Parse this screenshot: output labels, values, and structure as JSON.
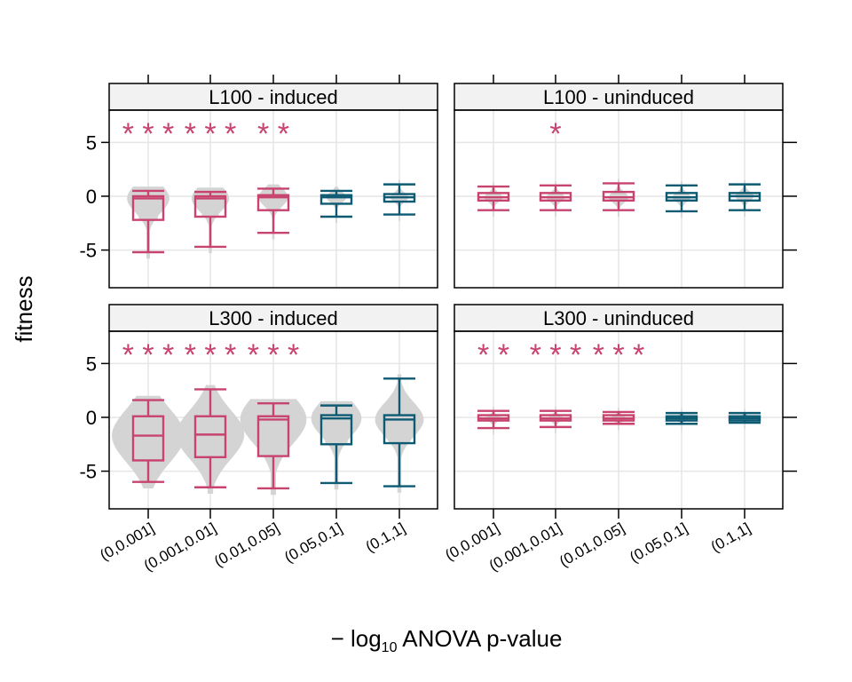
{
  "chart_data": {
    "type": "box",
    "xlabel": {
      "prefix": "− log",
      "subscript": "10",
      "suffix": " ANOVA p-value"
    },
    "ylabel": "fitness",
    "ylim": [
      -8.5,
      8
    ],
    "yticks": [
      -5,
      0,
      5
    ],
    "ytick_labels": [
      "-5",
      "0",
      "5"
    ],
    "grid": true,
    "categories": [
      "(0,0.001]",
      "(0.001,0.01]",
      "(0.01,0.05]",
      "(0.05,0.1]",
      "(0.1,1]"
    ],
    "colors": {
      "significant": "#c8436e",
      "nonsignificant": "#0d5a73",
      "violin": "#d4d4d4",
      "grid": "#e6e6e6",
      "strip": "#f2f2f2"
    },
    "panels": [
      {
        "title": "L100 - induced",
        "boxes": [
          {
            "lower_whisker": -5.2,
            "q1": -2.2,
            "median": -0.2,
            "q3": 0.0,
            "upper_whisker": 0.5,
            "significance": "***"
          },
          {
            "lower_whisker": -4.7,
            "q1": -1.9,
            "median": -0.2,
            "q3": 0.0,
            "upper_whisker": 0.4,
            "significance": "***"
          },
          {
            "lower_whisker": -3.4,
            "q1": -1.3,
            "median": -0.1,
            "q3": 0.1,
            "upper_whisker": 0.7,
            "significance": "**"
          },
          {
            "lower_whisker": -1.9,
            "q1": -0.7,
            "median": -0.1,
            "q3": 0.1,
            "upper_whisker": 0.5,
            "significance": ""
          },
          {
            "lower_whisker": -1.7,
            "q1": -0.5,
            "median": -0.1,
            "q3": 0.2,
            "upper_whisker": 1.1,
            "significance": ""
          }
        ]
      },
      {
        "title": "L100 - uninduced",
        "boxes": [
          {
            "lower_whisker": -1.3,
            "q1": -0.4,
            "median": -0.1,
            "q3": 0.3,
            "upper_whisker": 0.9,
            "significance": ""
          },
          {
            "lower_whisker": -1.3,
            "q1": -0.4,
            "median": -0.1,
            "q3": 0.3,
            "upper_whisker": 1.0,
            "significance": "*"
          },
          {
            "lower_whisker": -1.3,
            "q1": -0.4,
            "median": -0.1,
            "q3": 0.4,
            "upper_whisker": 1.2,
            "significance": ""
          },
          {
            "lower_whisker": -1.4,
            "q1": -0.4,
            "median": -0.1,
            "q3": 0.3,
            "upper_whisker": 1.0,
            "significance": ""
          },
          {
            "lower_whisker": -1.3,
            "q1": -0.4,
            "median": 0.0,
            "q3": 0.3,
            "upper_whisker": 1.1,
            "significance": ""
          }
        ]
      },
      {
        "title": "L300 - induced",
        "boxes": [
          {
            "lower_whisker": -6.0,
            "q1": -4.0,
            "median": -1.7,
            "q3": 0.1,
            "upper_whisker": 1.6,
            "significance": "***"
          },
          {
            "lower_whisker": -6.5,
            "q1": -3.7,
            "median": -1.6,
            "q3": 0.1,
            "upper_whisker": 2.6,
            "significance": "***"
          },
          {
            "lower_whisker": -6.6,
            "q1": -3.6,
            "median": -0.2,
            "q3": 0.1,
            "upper_whisker": 1.3,
            "significance": "***"
          },
          {
            "lower_whisker": -6.1,
            "q1": -2.5,
            "median": -0.1,
            "q3": 0.2,
            "upper_whisker": 1.1,
            "significance": ""
          },
          {
            "lower_whisker": -6.4,
            "q1": -2.4,
            "median": -0.2,
            "q3": 0.2,
            "upper_whisker": 3.6,
            "significance": ""
          }
        ]
      },
      {
        "title": "L300 - uninduced",
        "boxes": [
          {
            "lower_whisker": -1.0,
            "q1": -0.3,
            "median": -0.1,
            "q3": 0.2,
            "upper_whisker": 0.6,
            "significance": "**"
          },
          {
            "lower_whisker": -0.9,
            "q1": -0.3,
            "median": -0.1,
            "q3": 0.2,
            "upper_whisker": 0.6,
            "significance": "***"
          },
          {
            "lower_whisker": -0.6,
            "q1": -0.3,
            "median": -0.1,
            "q3": 0.2,
            "upper_whisker": 0.5,
            "significance": "***"
          },
          {
            "lower_whisker": -0.6,
            "q1": -0.3,
            "median": -0.1,
            "q3": 0.1,
            "upper_whisker": 0.4,
            "significance": ""
          },
          {
            "lower_whisker": -0.5,
            "q1": -0.3,
            "median": -0.1,
            "q3": 0.1,
            "upper_whisker": 0.4,
            "significance": ""
          }
        ]
      }
    ]
  }
}
